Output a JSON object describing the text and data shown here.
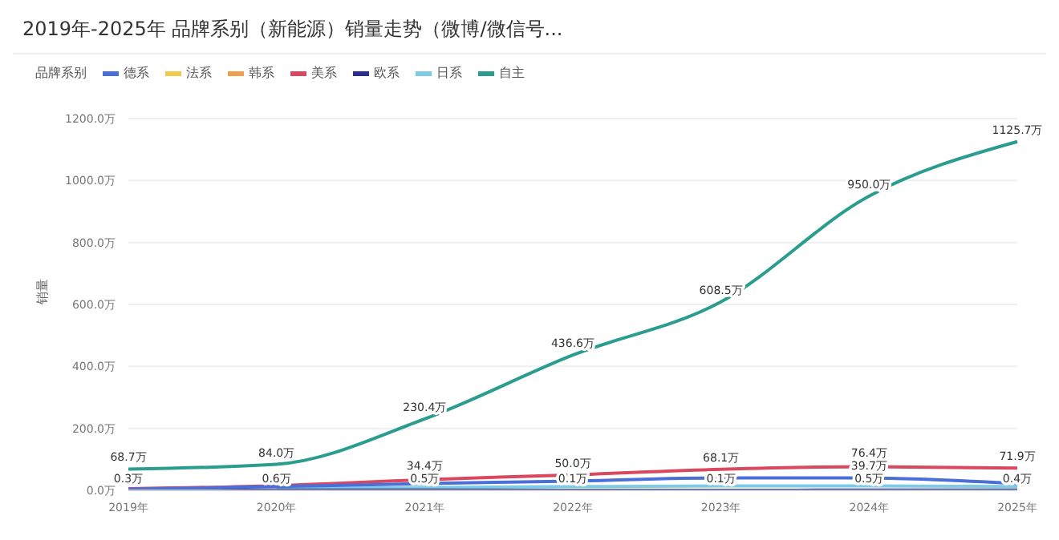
{
  "chart_data": {
    "type": "line",
    "title": "2019年-2025年 品牌系别（新能源）销量走势（微博/微信号...",
    "ylabel": "销量",
    "legend_title": "品牌系别",
    "legend": "top left",
    "grid": "y",
    "marker": "none",
    "line_style": "solid",
    "categories": [
      "2019年",
      "2020年",
      "2021年",
      "2022年",
      "2023年",
      "2024年",
      "2025年"
    ],
    "ylim": [
      0,
      1200
    ],
    "yticks": [
      {
        "value": 0,
        "label": "0.0万"
      },
      {
        "value": 200,
        "label": "200.0万"
      },
      {
        "value": 400,
        "label": "400.0万"
      },
      {
        "value": 600,
        "label": "600.0万"
      },
      {
        "value": 800,
        "label": "800.0万"
      },
      {
        "value": 1000,
        "label": "1000.0万"
      },
      {
        "value": 1200,
        "label": "1200.0万"
      }
    ],
    "series": [
      {
        "name": "德系",
        "color": "#4a6fd8",
        "values": [
          3,
          12,
          22,
          30,
          40,
          39.7,
          22
        ],
        "value_labels": [
          null,
          null,
          null,
          null,
          null,
          "39.7万",
          null
        ]
      },
      {
        "name": "法系",
        "color": "#f2c94c",
        "values": [
          null,
          null,
          null,
          null,
          null,
          null,
          null
        ]
      },
      {
        "name": "韩系",
        "color": "#f0a04b",
        "values": [
          null,
          null,
          null,
          null,
          null,
          null,
          null
        ]
      },
      {
        "name": "美系",
        "color": "#d9485f",
        "values": [
          5,
          15,
          34.4,
          50,
          68.1,
          76.4,
          71.9
        ],
        "value_labels": [
          null,
          null,
          "34.4万",
          "50.0万",
          "68.1万",
          "76.4万",
          "71.9万"
        ]
      },
      {
        "name": "欧系",
        "color": "#2b2f8f",
        "values": [
          0.3,
          0.6,
          0.5,
          0.1,
          0.1,
          0.5,
          0.4
        ],
        "value_labels": [
          "0.3万",
          "0.6万",
          "0.5万",
          "0.1万",
          "0.1万",
          "0.5万",
          "0.4万"
        ]
      },
      {
        "name": "日系",
        "color": "#7ecbe8",
        "values": [
          null,
          5,
          9,
          12,
          14,
          14,
          12
        ],
        "value_labels": [
          null,
          null,
          null,
          null,
          null,
          null,
          null
        ]
      },
      {
        "name": "自主",
        "color": "#2a9d8f",
        "values": [
          68.7,
          84,
          230.4,
          436.6,
          608.5,
          950,
          1125.7
        ],
        "value_labels": [
          "68.7万",
          "84.0万",
          "230.4万",
          "436.6万",
          "608.5万",
          "950.0万",
          "1125.7万"
        ]
      }
    ]
  }
}
